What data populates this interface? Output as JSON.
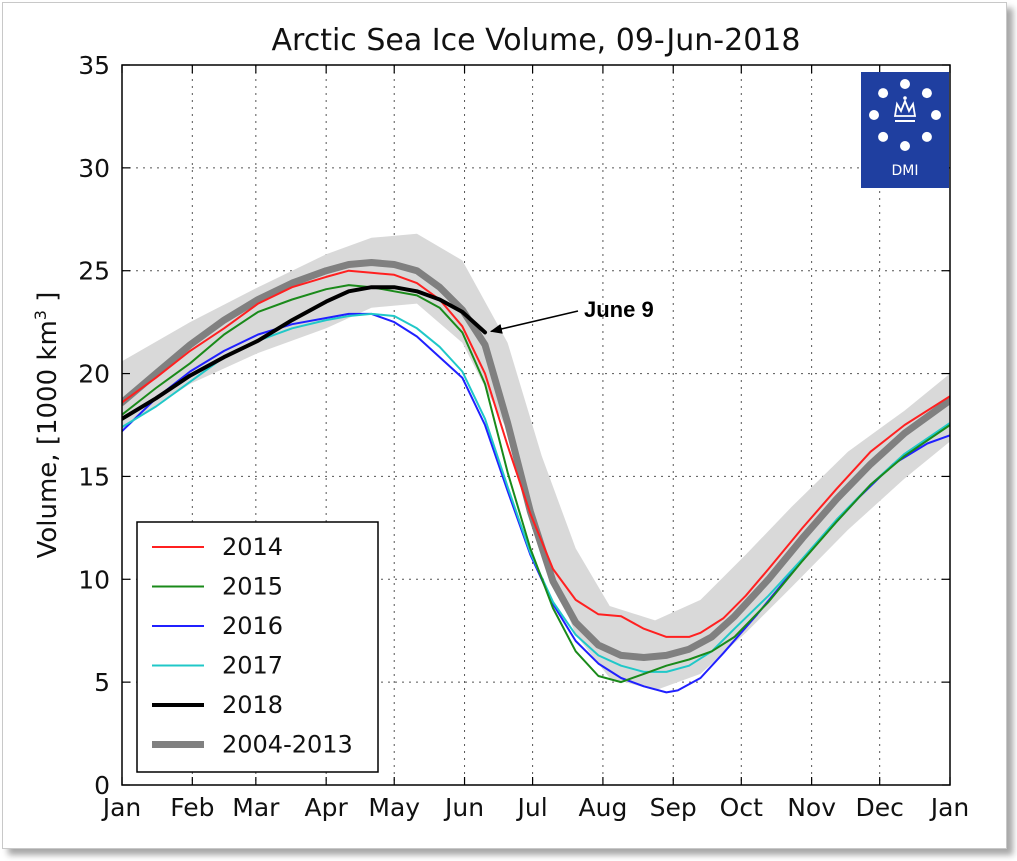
{
  "chart_data": {
    "type": "line",
    "title": "Arctic Sea Ice Volume, 09-Jun-2018",
    "ylabel_main": "Volume, [1000 km",
    "ylabel_sup": "3",
    "ylabel_tail": " ]",
    "xlabel": "",
    "ylim": [
      0,
      35
    ],
    "yticks": [
      "0",
      "5",
      "10",
      "15",
      "20",
      "25",
      "30",
      "35"
    ],
    "months": [
      "Jan",
      "Feb",
      "Mar",
      "Apr",
      "May",
      "Jun",
      "Jul",
      "Aug",
      "Sep",
      "Oct",
      "Nov",
      "Dec",
      "Jan"
    ],
    "grid": true,
    "legend_position": "lower-left",
    "colors": {
      "2014": "#ff2020",
      "2015": "#1a8a1a",
      "2016": "#2020ff",
      "2017": "#20c8c8",
      "2018": "#000000",
      "2004-2013": "#808080",
      "band": "#d9d9d9"
    },
    "band": {
      "x": [
        0,
        30,
        60,
        90,
        110,
        130,
        150,
        170,
        185,
        200,
        215,
        235,
        255,
        275,
        295,
        320,
        345,
        365
      ],
      "upper": [
        20.6,
        22.5,
        24.2,
        25.8,
        26.6,
        26.8,
        25.5,
        21.5,
        16.0,
        11.5,
        8.7,
        8.0,
        9.0,
        11.2,
        13.5,
        16.2,
        18.2,
        20.0
      ],
      "lower": [
        17.3,
        19.5,
        21.0,
        22.2,
        23.2,
        23.4,
        21.5,
        17.2,
        11.5,
        7.3,
        5.2,
        4.6,
        5.4,
        7.4,
        9.6,
        12.4,
        14.9,
        16.7
      ]
    },
    "series": [
      {
        "name": "2014",
        "x": [
          0,
          15,
          30,
          45,
          60,
          75,
          90,
          100,
          110,
          120,
          130,
          140,
          150,
          160,
          170,
          180,
          190,
          200,
          210,
          220,
          230,
          240,
          250,
          255,
          265,
          275,
          285,
          300,
          315,
          330,
          345,
          365
        ],
        "y": [
          18.6,
          19.8,
          21.1,
          22.2,
          23.4,
          24.2,
          24.7,
          25.0,
          24.9,
          24.8,
          24.4,
          23.6,
          22.3,
          20.0,
          16.5,
          13.2,
          10.5,
          9.0,
          8.3,
          8.2,
          7.6,
          7.2,
          7.2,
          7.4,
          8.1,
          9.2,
          10.5,
          12.5,
          14.4,
          16.2,
          17.5,
          18.9
        ]
      },
      {
        "name": "2015",
        "x": [
          0,
          15,
          30,
          45,
          60,
          75,
          90,
          100,
          110,
          120,
          130,
          140,
          150,
          160,
          170,
          180,
          190,
          200,
          210,
          220,
          230,
          240,
          250,
          260,
          270,
          285,
          300,
          315,
          330,
          345,
          365
        ],
        "y": [
          18.0,
          19.3,
          20.5,
          21.9,
          23.0,
          23.6,
          24.1,
          24.3,
          24.2,
          24.0,
          23.8,
          23.2,
          22.0,
          19.5,
          15.2,
          11.5,
          8.6,
          6.5,
          5.3,
          5.0,
          5.4,
          5.8,
          6.1,
          6.5,
          7.2,
          8.9,
          10.9,
          12.8,
          14.6,
          16.0,
          17.5
        ]
      },
      {
        "name": "2016",
        "x": [
          0,
          15,
          30,
          45,
          60,
          75,
          90,
          100,
          110,
          120,
          130,
          140,
          150,
          160,
          170,
          180,
          190,
          200,
          210,
          220,
          230,
          240,
          245,
          255,
          265,
          280,
          295,
          310,
          325,
          340,
          355,
          365
        ],
        "y": [
          17.2,
          18.8,
          20.1,
          21.1,
          21.9,
          22.4,
          22.7,
          22.9,
          22.9,
          22.5,
          21.8,
          20.8,
          19.8,
          17.5,
          14.3,
          11.2,
          8.8,
          7.0,
          5.9,
          5.2,
          4.8,
          4.5,
          4.6,
          5.2,
          6.4,
          8.3,
          10.3,
          12.2,
          14.0,
          15.6,
          16.6,
          17.0
        ]
      },
      {
        "name": "2017",
        "x": [
          0,
          15,
          30,
          45,
          60,
          75,
          90,
          100,
          110,
          120,
          130,
          140,
          150,
          160,
          170,
          180,
          190,
          200,
          210,
          220,
          230,
          240,
          250,
          260,
          270,
          285,
          300,
          315,
          330,
          345,
          365
        ],
        "y": [
          17.4,
          18.4,
          19.6,
          20.8,
          21.6,
          22.2,
          22.6,
          22.8,
          22.9,
          22.8,
          22.2,
          21.3,
          20.1,
          17.8,
          14.5,
          11.3,
          8.9,
          7.3,
          6.3,
          5.8,
          5.5,
          5.5,
          5.8,
          6.5,
          7.6,
          9.2,
          11.0,
          12.9,
          14.6,
          16.1,
          17.6
        ]
      },
      {
        "name": "2018",
        "x": [
          0,
          15,
          30,
          45,
          60,
          75,
          90,
          100,
          110,
          120,
          130,
          140,
          150,
          160
        ],
        "y": [
          17.8,
          18.8,
          19.9,
          20.8,
          21.6,
          22.6,
          23.5,
          24.0,
          24.2,
          24.2,
          24.0,
          23.6,
          23.0,
          22.0
        ]
      },
      {
        "name": "2004-2013",
        "x": [
          0,
          15,
          30,
          45,
          60,
          75,
          90,
          100,
          110,
          120,
          130,
          140,
          150,
          160,
          170,
          180,
          190,
          200,
          210,
          220,
          230,
          240,
          250,
          260,
          270,
          285,
          300,
          315,
          330,
          345,
          365
        ],
        "y": [
          18.6,
          20.0,
          21.4,
          22.6,
          23.6,
          24.4,
          25.0,
          25.3,
          25.4,
          25.3,
          25.0,
          24.2,
          23.1,
          21.4,
          17.6,
          13.3,
          9.9,
          7.9,
          6.8,
          6.3,
          6.2,
          6.3,
          6.6,
          7.2,
          8.2,
          10.0,
          12.0,
          13.9,
          15.6,
          17.1,
          18.7
        ]
      }
    ],
    "annotation": {
      "text": "June 9",
      "target_x": 160,
      "target_y": 22.0
    }
  },
  "legend_entries": [
    "2014",
    "2015",
    "2016",
    "2017",
    "2018",
    "2004-2013"
  ],
  "logo": {
    "text": "DMI",
    "bg": "#1f3fa0"
  }
}
